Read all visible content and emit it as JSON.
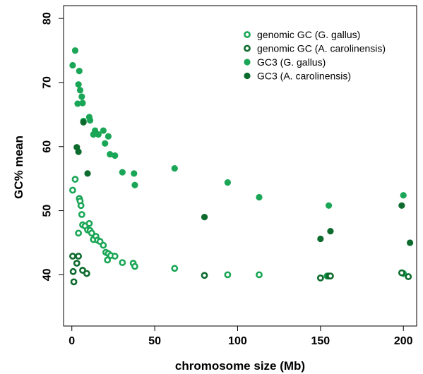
{
  "chart_data": {
    "type": "scatter",
    "xlabel": "chromosome size (Mb)",
    "ylabel": "GC% mean",
    "xlim": [
      -5,
      208
    ],
    "ylim": [
      32,
      82
    ],
    "xticks": [
      0,
      50,
      100,
      150,
      200
    ],
    "xtick_labels": [
      "0",
      "50",
      "100",
      "150",
      "200"
    ],
    "yticks": [
      40,
      50,
      60,
      70,
      80
    ],
    "ytick_labels": [
      "40",
      "50",
      "60",
      "70",
      "80"
    ],
    "legend_position": "top-right",
    "grid": false,
    "series": [
      {
        "name": "genomic GC (G. gallus)",
        "color": "#1aa656",
        "marker": "open-circle",
        "points": [
          [
            0.5,
            53.2
          ],
          [
            2,
            54.9
          ],
          [
            4,
            46.5
          ],
          [
            4.5,
            51.9
          ],
          [
            5,
            51.5
          ],
          [
            5.5,
            50.8
          ],
          [
            6,
            49.4
          ],
          [
            6.5,
            47.8
          ],
          [
            8,
            47.6
          ],
          [
            9.5,
            47.0
          ],
          [
            10.5,
            48.0
          ],
          [
            11,
            46.9
          ],
          [
            12,
            46.5
          ],
          [
            13,
            45.5
          ],
          [
            14.5,
            46.0
          ],
          [
            15.5,
            45.4
          ],
          [
            17,
            45.2
          ],
          [
            19,
            44.6
          ],
          [
            20.5,
            43.5
          ],
          [
            21.5,
            42.3
          ],
          [
            22,
            43.3
          ],
          [
            23.5,
            43.0
          ],
          [
            26,
            42.9
          ],
          [
            30.5,
            41.9
          ],
          [
            37,
            41.8
          ],
          [
            38,
            41.3
          ],
          [
            62,
            41.0
          ],
          [
            94,
            40.0
          ],
          [
            113,
            40.0
          ],
          [
            154,
            39.8
          ],
          [
            200,
            40.2
          ]
        ]
      },
      {
        "name": "genomic GC (A. carolinensis)",
        "color": "#0d6b2e",
        "marker": "open-circle",
        "points": [
          [
            0.5,
            42.9
          ],
          [
            0.8,
            40.5
          ],
          [
            1.2,
            38.9
          ],
          [
            3,
            41.8
          ],
          [
            4,
            42.9
          ],
          [
            6.5,
            40.7
          ],
          [
            9,
            40.2
          ],
          [
            80,
            39.9
          ],
          [
            150,
            39.5
          ],
          [
            155,
            39.8
          ],
          [
            156,
            39.8
          ],
          [
            199,
            40.3
          ],
          [
            203,
            39.7
          ]
        ]
      },
      {
        "name": "GC3 (G. gallus)",
        "color": "#1aa656",
        "marker": "filled-circle",
        "points": [
          [
            0.5,
            72.7
          ],
          [
            2,
            75.0
          ],
          [
            4,
            69.7
          ],
          [
            4.5,
            71.8
          ],
          [
            3.5,
            66.7
          ],
          [
            5,
            68.8
          ],
          [
            6,
            67.8
          ],
          [
            6.5,
            66.8
          ],
          [
            7,
            64.0
          ],
          [
            10.5,
            64.6
          ],
          [
            11,
            64.1
          ],
          [
            13,
            61.9
          ],
          [
            14,
            62.5
          ],
          [
            16,
            61.9
          ],
          [
            19,
            62.5
          ],
          [
            20,
            60.5
          ],
          [
            22,
            61.6
          ],
          [
            23,
            58.8
          ],
          [
            26,
            58.6
          ],
          [
            30.5,
            56.0
          ],
          [
            37.5,
            55.8
          ],
          [
            38,
            54.0
          ],
          [
            62,
            56.6
          ],
          [
            94,
            54.4
          ],
          [
            113,
            52.1
          ],
          [
            155,
            50.8
          ],
          [
            200,
            52.4
          ]
        ]
      },
      {
        "name": "GC3 (A. carolinensis)",
        "color": "#0d6b2e",
        "marker": "filled-circle",
        "points": [
          [
            3,
            59.9
          ],
          [
            4,
            59.2
          ],
          [
            7,
            63.8
          ],
          [
            9.5,
            55.8
          ],
          [
            80,
            49.0
          ],
          [
            150,
            45.6
          ],
          [
            156,
            46.8
          ],
          [
            199,
            50.8
          ],
          [
            204,
            45.0
          ]
        ]
      }
    ]
  }
}
